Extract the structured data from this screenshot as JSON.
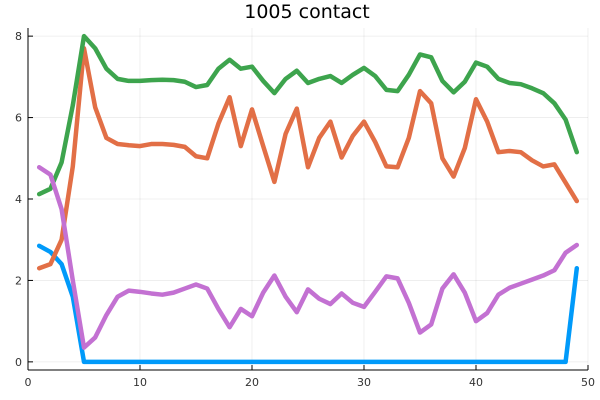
{
  "chart_data": {
    "type": "line",
    "title": "1005 contact",
    "xlabel": "",
    "ylabel": "",
    "xlim": [
      0,
      50
    ],
    "ylim": [
      -0.2,
      8.2
    ],
    "xticks": [
      0,
      10,
      20,
      30,
      40,
      50
    ],
    "yticks": [
      0,
      2,
      4,
      6,
      8
    ],
    "grid": true,
    "legend": "none",
    "x": [
      1,
      2,
      3,
      4,
      5,
      6,
      7,
      8,
      9,
      10,
      11,
      12,
      13,
      14,
      15,
      16,
      17,
      18,
      19,
      20,
      21,
      22,
      23,
      24,
      25,
      26,
      27,
      28,
      29,
      30,
      31,
      32,
      33,
      34,
      35,
      36,
      37,
      38,
      39,
      40,
      41,
      42,
      43,
      44,
      45,
      46,
      47,
      48,
      49
    ],
    "series": [
      {
        "color": "#009AFA",
        "values": [
          2.85,
          2.7,
          2.4,
          1.6,
          0,
          0,
          0,
          0,
          0,
          0,
          0,
          0,
          0,
          0,
          0,
          0,
          0,
          0,
          0,
          0,
          0,
          0,
          0,
          0,
          0,
          0,
          0,
          0,
          0,
          0,
          0,
          0,
          0,
          0,
          0,
          0,
          0,
          0,
          0,
          0,
          0,
          0,
          0,
          0,
          0,
          0,
          0,
          0,
          2.3
        ]
      },
      {
        "color": "#E26F46",
        "values": [
          2.3,
          2.4,
          3.0,
          4.8,
          7.7,
          6.25,
          5.5,
          5.35,
          5.32,
          5.3,
          5.35,
          5.35,
          5.33,
          5.28,
          5.05,
          5.0,
          5.85,
          6.5,
          5.3,
          6.2,
          5.3,
          4.42,
          5.6,
          6.22,
          4.78,
          5.5,
          5.9,
          5.02,
          5.55,
          5.9,
          5.4,
          4.8,
          4.78,
          5.5,
          6.65,
          6.35,
          5.0,
          4.55,
          5.25,
          6.45,
          5.9,
          5.15,
          5.18,
          5.15,
          4.95,
          4.8,
          4.85,
          4.4,
          3.95
        ]
      },
      {
        "color": "#3DA44D",
        "values": [
          4.12,
          4.25,
          4.9,
          6.3,
          8.0,
          7.7,
          7.2,
          6.95,
          6.9,
          6.9,
          6.92,
          6.93,
          6.92,
          6.88,
          6.75,
          6.8,
          7.2,
          7.42,
          7.2,
          7.25,
          6.9,
          6.6,
          6.95,
          7.15,
          6.85,
          6.95,
          7.02,
          6.85,
          7.05,
          7.22,
          7.02,
          6.68,
          6.65,
          7.05,
          7.55,
          7.48,
          6.9,
          6.62,
          6.88,
          7.35,
          7.25,
          6.95,
          6.85,
          6.82,
          6.72,
          6.6,
          6.35,
          5.95,
          5.15
        ]
      },
      {
        "color": "#C371D2",
        "values": [
          4.78,
          4.6,
          3.75,
          2.0,
          0.35,
          0.6,
          1.15,
          1.6,
          1.75,
          1.72,
          1.68,
          1.65,
          1.7,
          1.8,
          1.9,
          1.8,
          1.3,
          0.85,
          1.3,
          1.12,
          1.7,
          2.12,
          1.6,
          1.22,
          1.78,
          1.55,
          1.42,
          1.68,
          1.45,
          1.35,
          1.72,
          2.1,
          2.05,
          1.45,
          0.72,
          0.92,
          1.8,
          2.15,
          1.7,
          1.0,
          1.2,
          1.65,
          1.82,
          1.92,
          2.02,
          2.12,
          2.25,
          2.68,
          2.87
        ]
      }
    ]
  }
}
